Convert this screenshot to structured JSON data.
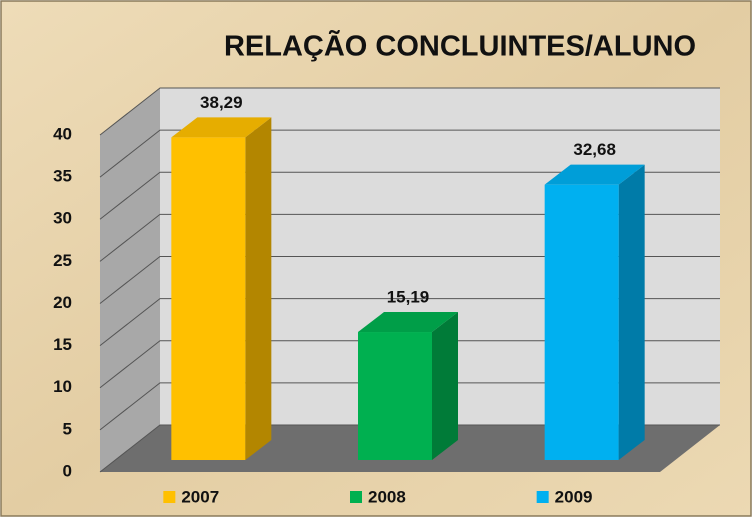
{
  "chart_data": {
    "type": "bar",
    "title": "RELAÇÃO CONCLUINTES/ALUNO",
    "categories": [
      "2007",
      "2008",
      "2009"
    ],
    "values": [
      38.29,
      15.19,
      32.68
    ],
    "value_labels": [
      "38,29",
      "15,19",
      "32,68"
    ],
    "colors": [
      "#ffc000",
      "#00b050",
      "#00b0f0"
    ],
    "ylim": [
      0,
      40
    ],
    "yticks": [
      0,
      5,
      10,
      15,
      20,
      25,
      30,
      35,
      40
    ],
    "grid": true,
    "legend": "bottom"
  }
}
